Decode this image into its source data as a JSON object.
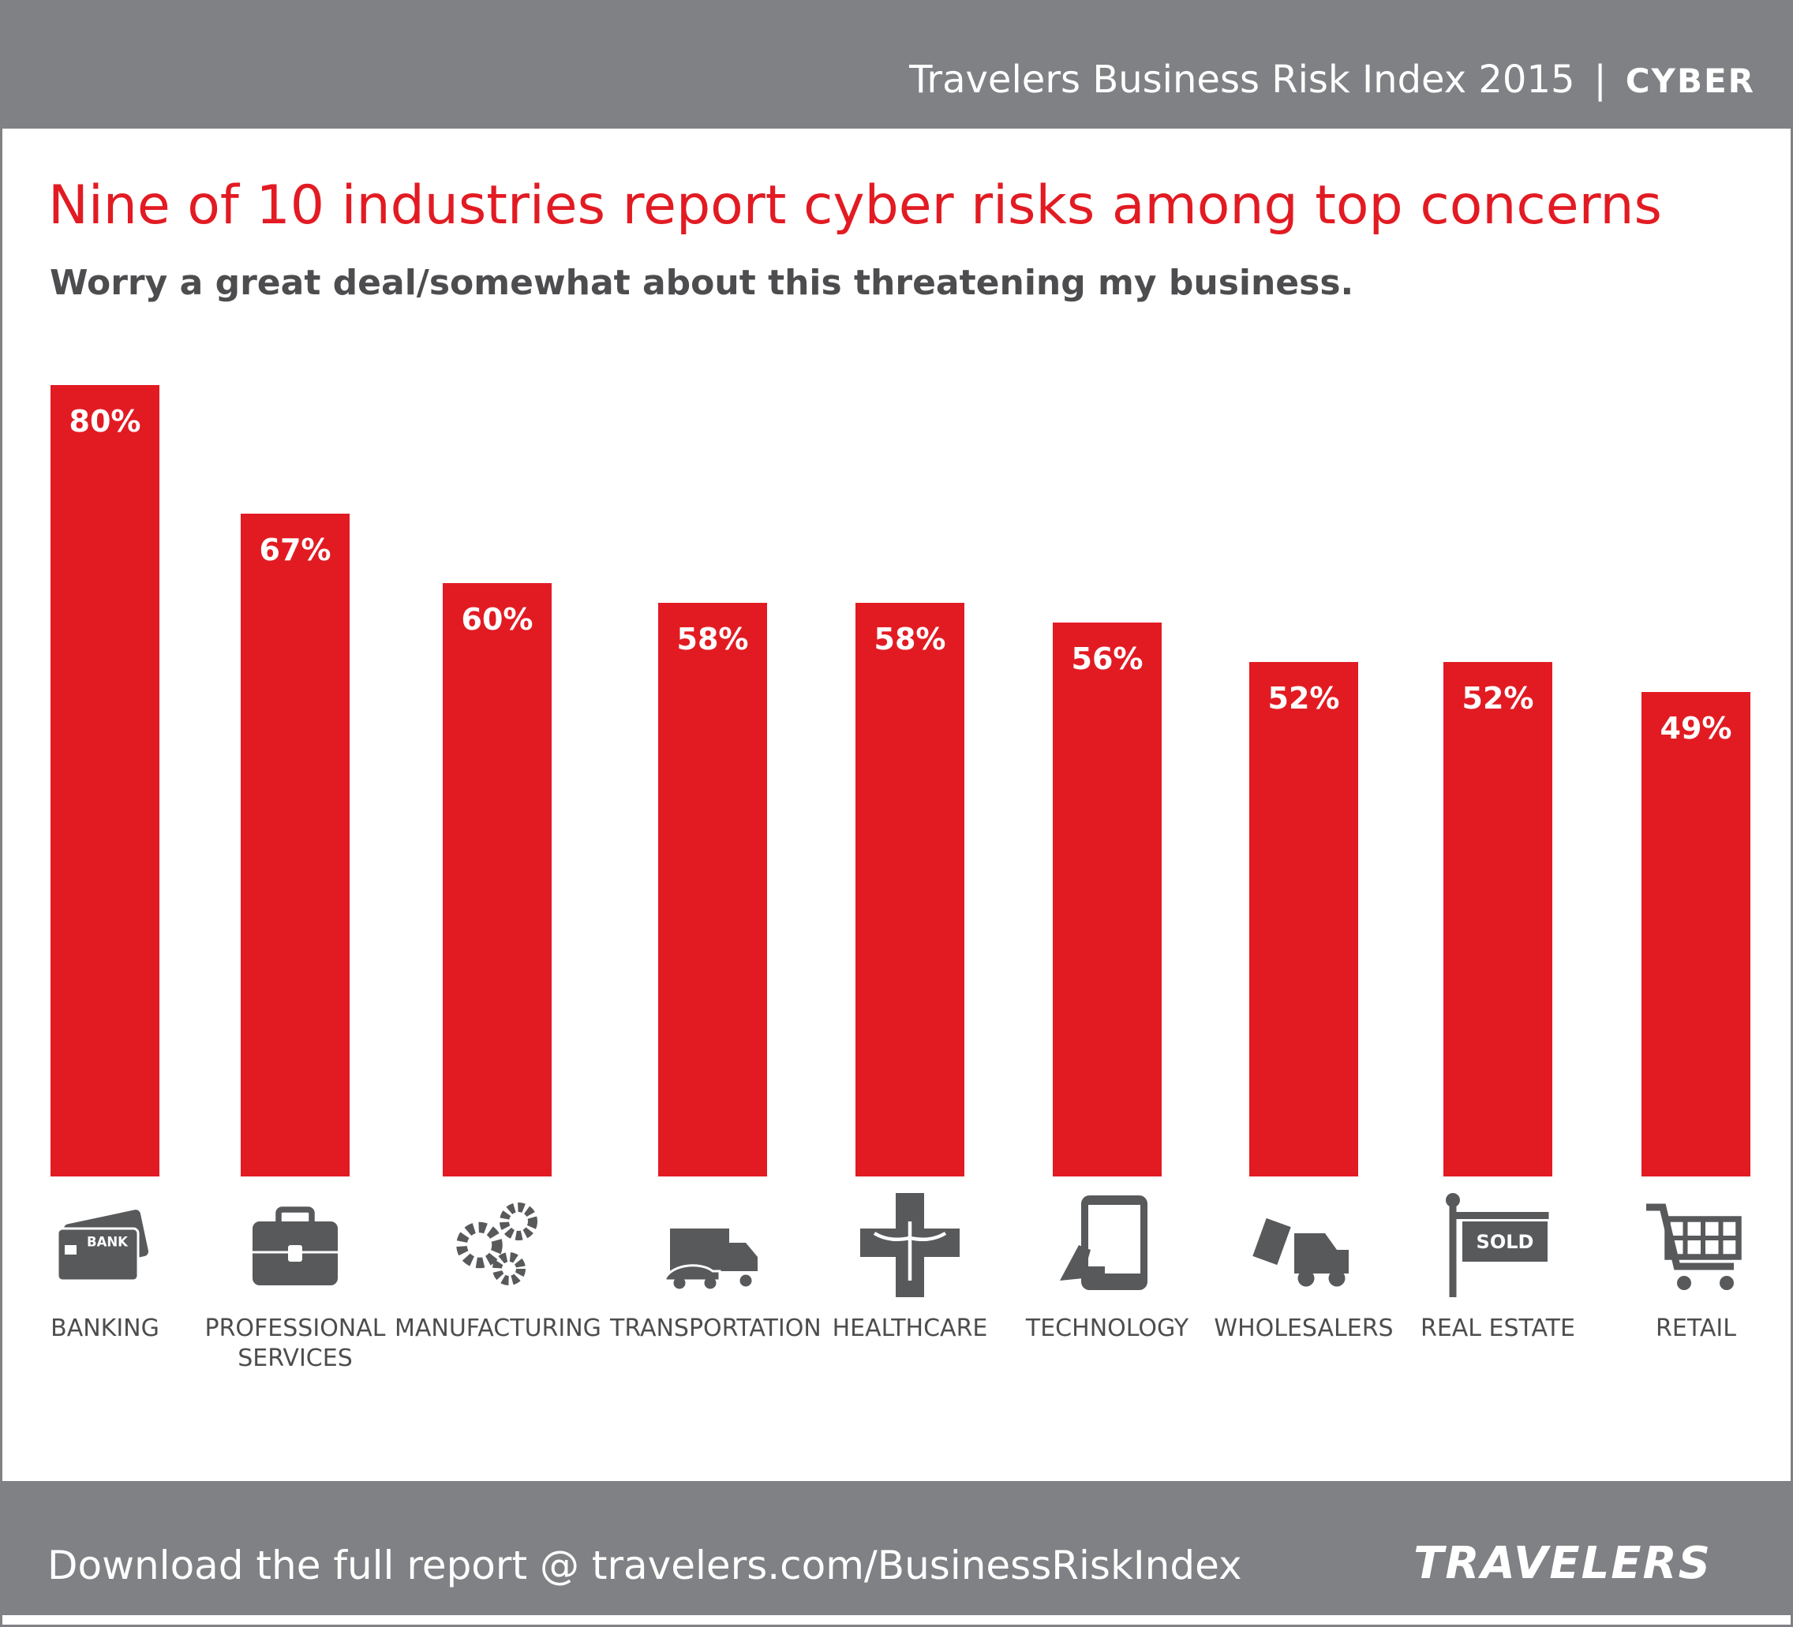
{
  "header": {
    "title": "Travelers Business Risk Index 2015",
    "section": "CYBER"
  },
  "chart_data": {
    "type": "bar",
    "title": "Nine of 10 industries report cyber risks among top concerns",
    "subtitle": "Worry a great deal/somewhat about this threatening my business.",
    "categories": [
      "BANKING",
      "PROFESSIONAL SERVICES",
      "MANUFACTURING",
      "TRANSPORTATION",
      "HEALTHCARE",
      "TECHNOLOGY",
      "WHOLESALERS",
      "REAL ESTATE",
      "RETAIL"
    ],
    "values": [
      80,
      67,
      60,
      58,
      58,
      56,
      52,
      52,
      49
    ],
    "value_labels": [
      "80%",
      "67%",
      "60%",
      "58%",
      "58%",
      "56%",
      "52%",
      "52%",
      "49%"
    ],
    "color": "#e21b23",
    "ylim": [
      0,
      80
    ]
  },
  "icon_labels": {
    "bank": "BANK",
    "sold": "SOLD"
  },
  "footer": {
    "text": "Download the full report @ travelers.com/BusinessRiskIndex",
    "logo": "TRAVELERS"
  }
}
